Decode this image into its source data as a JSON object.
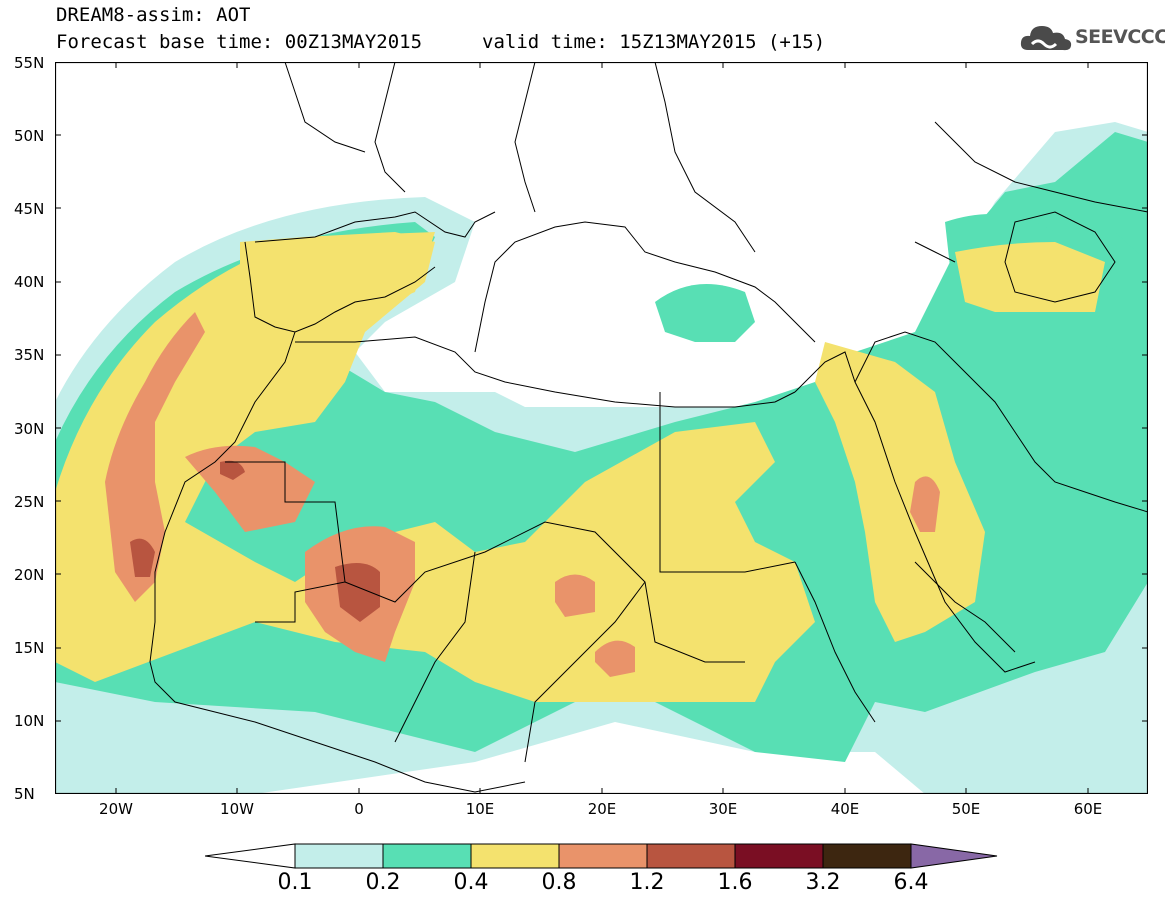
{
  "header": {
    "title_line1": "DREAM8-assim: AOT",
    "title_line2": "Forecast base time: 00Z13MAY2015",
    "valid_time": "valid time: 15Z13MAY2015 (+15)",
    "logo_text": "SEEVCCC",
    "logo_icon": "cloud-icon"
  },
  "axes": {
    "lat_labels": [
      "55N",
      "50N",
      "45N",
      "40N",
      "35N",
      "30N",
      "25N",
      "20N",
      "15N",
      "10N",
      "5N"
    ],
    "lon_labels": [
      "20W",
      "10W",
      "0",
      "10E",
      "20E",
      "30E",
      "40E",
      "50E",
      "60E"
    ]
  },
  "legend": {
    "levels": [
      "0.1",
      "0.2",
      "0.4",
      "0.8",
      "1.2",
      "1.6",
      "3.2",
      "6.4"
    ],
    "colors": {
      "below": "#ffffff",
      "c1": "#c3eeea",
      "c2": "#58dfb4",
      "c3": "#f4e26e",
      "c4": "#e9936a",
      "c5": "#b85540",
      "c6": "#7a0e23",
      "c7": "#3d2610",
      "above": "#8868a6"
    }
  },
  "map": {
    "variable": "AOT",
    "coastline_color": "#000000",
    "lat_range": [
      5,
      55
    ],
    "lon_range": [
      -25,
      65
    ]
  }
}
